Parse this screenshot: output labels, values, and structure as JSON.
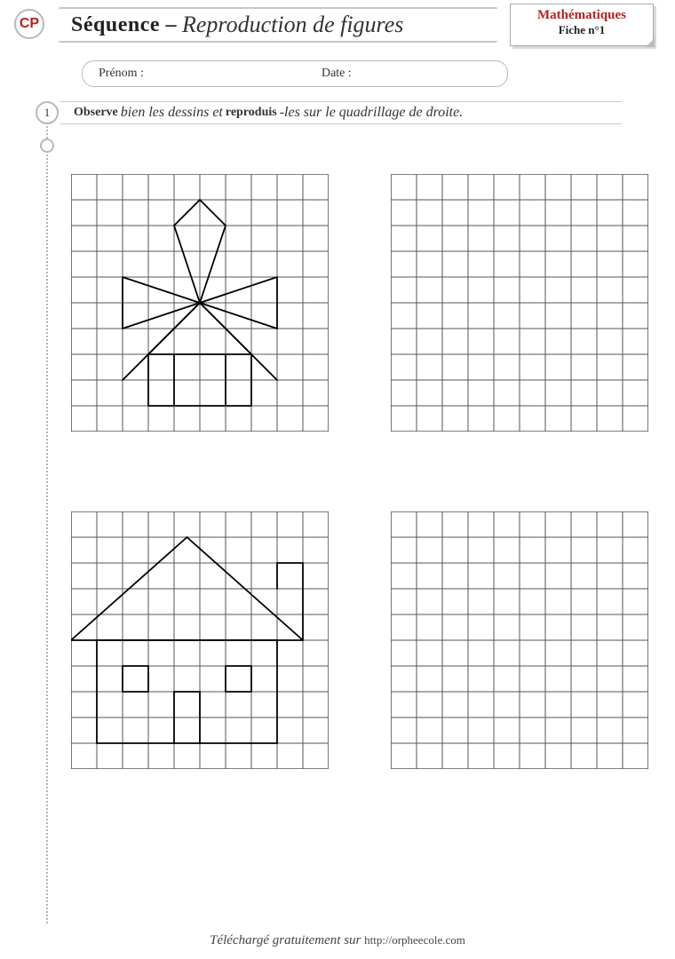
{
  "header": {
    "grade": "CP",
    "title_strong": "Séquence –",
    "title_script": "Reproduction de figures",
    "subject": "Mathématiques",
    "sheet": "Fiche n°1"
  },
  "name_row": {
    "prenom_label": "Prénom :",
    "date_label": "Date :"
  },
  "task": {
    "number": "1",
    "instr_b1": "Observe",
    "instr_t1": " bien les dessins et ",
    "instr_b2": "reproduis",
    "instr_t2": "-les sur le quadrillage de droite."
  },
  "grid": {
    "cols": 10,
    "rows": 10,
    "cell": 29,
    "grid_color": "#555555",
    "stroke_width_grid": 1,
    "figure_color": "#000000",
    "stroke_width_fig": 1.8,
    "background": "#ffffff"
  },
  "figure1_lines": [
    [
      3,
      9,
      3,
      7
    ],
    [
      3,
      7,
      7,
      7
    ],
    [
      7,
      7,
      7,
      9
    ],
    [
      7,
      9,
      3,
      9
    ],
    [
      4,
      9,
      4,
      7
    ],
    [
      6,
      9,
      6,
      7
    ],
    [
      3,
      7,
      5,
      5
    ],
    [
      7,
      7,
      5,
      5
    ],
    [
      5,
      5,
      2,
      4
    ],
    [
      2,
      4,
      2,
      6
    ],
    [
      2,
      6,
      5,
      5
    ],
    [
      5,
      5,
      8,
      4
    ],
    [
      8,
      4,
      8,
      6
    ],
    [
      8,
      6,
      5,
      5
    ],
    [
      5,
      5,
      4,
      2
    ],
    [
      4,
      2,
      5,
      1
    ],
    [
      5,
      1,
      6,
      2
    ],
    [
      6,
      2,
      5,
      5
    ],
    [
      5,
      5,
      2,
      8
    ],
    [
      5,
      5,
      8,
      8
    ]
  ],
  "figure2_lines": [
    [
      1,
      9,
      1,
      5
    ],
    [
      1,
      5,
      8,
      5
    ],
    [
      8,
      5,
      8,
      9
    ],
    [
      8,
      9,
      1,
      9
    ],
    [
      4,
      9,
      4,
      7
    ],
    [
      4,
      7,
      5,
      7
    ],
    [
      5,
      7,
      5,
      9
    ],
    [
      2,
      6,
      3,
      6
    ],
    [
      3,
      6,
      3,
      7
    ],
    [
      3,
      7,
      2,
      7
    ],
    [
      2,
      7,
      2,
      6
    ],
    [
      6,
      6,
      7,
      6
    ],
    [
      7,
      6,
      7,
      7
    ],
    [
      7,
      7,
      6,
      7
    ],
    [
      6,
      7,
      6,
      6
    ],
    [
      0,
      5,
      4.5,
      1
    ],
    [
      4.5,
      1,
      9,
      5
    ],
    [
      9,
      5,
      0,
      5
    ],
    [
      8,
      3,
      8,
      2
    ],
    [
      8,
      2,
      9,
      2
    ],
    [
      9,
      2,
      9,
      5
    ]
  ],
  "footer": {
    "text": "Téléchargé gratuitement sur ",
    "url": "http://orpheecole.com"
  }
}
